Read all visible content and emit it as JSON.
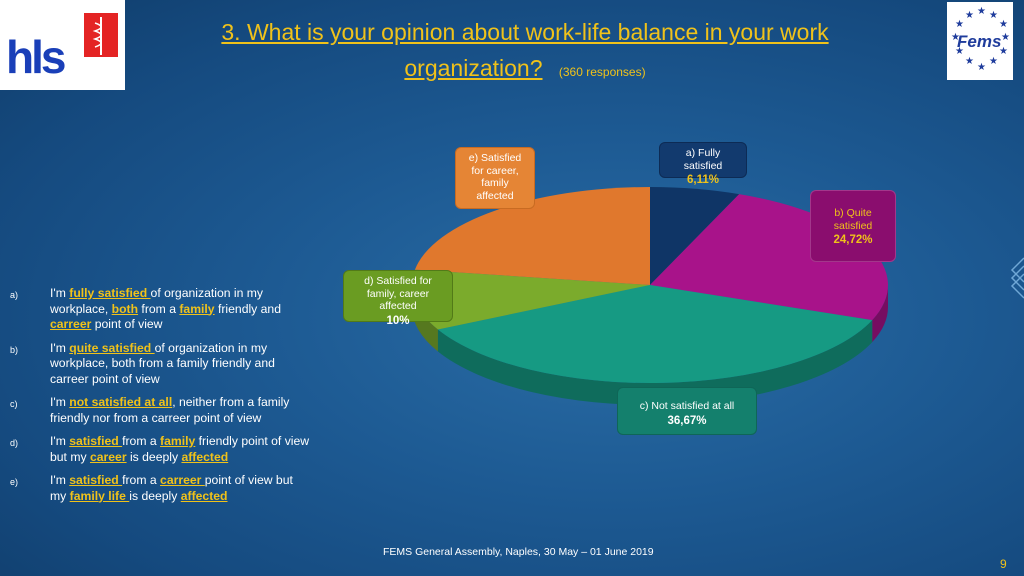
{
  "title": {
    "question": "3. What is your opinion about work-life balance in your work organization?",
    "responses": "(360 responses)"
  },
  "logos": {
    "left": "hls",
    "right": "Fems"
  },
  "chart_data": {
    "type": "pie",
    "labels": [
      "a) Fully satisfied",
      "b) Quite satisfied",
      "c) Not satisfied at all",
      "d) Satisfied for family, career affected",
      "e) Satisfied for career, family affected"
    ],
    "values": [
      6.11,
      24.72,
      36.67,
      10,
      22.5
    ],
    "value_labels": [
      "6,11%",
      "24,72%",
      "36,67%",
      "10%",
      ""
    ],
    "colors": [
      "#0f3566",
      "#a8138a",
      "#169a83",
      "#7bab2c",
      "#e0782d"
    ]
  },
  "callouts": {
    "a": {
      "label": "a) Fully satisfied",
      "pct": "6,11%"
    },
    "b": {
      "label": "b) Quite satisfied",
      "pct": "24,72%"
    },
    "c": {
      "label": "c) Not satisfied at all",
      "pct": "36,67%"
    },
    "d": {
      "label": "d) Satisfied for family, career affected",
      "pct": "10%"
    },
    "e": {
      "label": "e) Satisfied for career, family affected"
    }
  },
  "legend": {
    "a": {
      "letter": "a)",
      "p1": "I'm ",
      "b1": "fully satisfied ",
      "p2": "of organization in my workplace, ",
      "b2": "both",
      "p3": " from a ",
      "b3": "family",
      "p4": " friendly and ",
      "b4": "carreer",
      "p5": " point of view"
    },
    "b": {
      "letter": "b)",
      "p1": "I'm ",
      "b1": "quite satisfied ",
      "p2": "of organization in my workplace, both from a family friendly and carreer point of view"
    },
    "c": {
      "letter": "c)",
      "p1": "I'm ",
      "b1": "not satisfied at all",
      "p2": ", neither from a family friendly nor from a carreer point of view"
    },
    "d": {
      "letter": "d)",
      "p1": "I'm ",
      "b1": "satisfied ",
      "p2": "from a ",
      "b2": "family",
      "p3": " friendly point of view but my ",
      "b3": "career",
      "p4": " is deeply ",
      "b4": "affected"
    },
    "e": {
      "letter": "e)",
      "p1": "I'm ",
      "b1": "satisfied ",
      "p2": "from a ",
      "b2": "carreer ",
      "p3": "point of view but my ",
      "b3": "family life ",
      "p4": "is deeply ",
      "b4": "affected"
    }
  },
  "footer": "FEMS General Assembly, Naples, 30 May – 01 June 2019",
  "page_number": "9"
}
